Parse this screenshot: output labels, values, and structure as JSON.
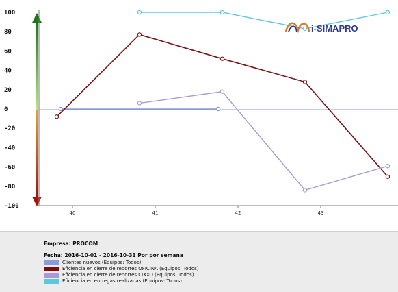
{
  "chart_data": {
    "type": "line",
    "ylim": [
      -100,
      100
    ],
    "yticks": [
      "100",
      "80",
      "60",
      "40",
      "20",
      "0",
      "-20",
      "-40",
      "-60",
      "-80",
      "-100"
    ],
    "categories": [
      "40",
      "41",
      "42",
      "43"
    ],
    "grid": false,
    "series": [
      {
        "name": "Clientes nuevos (Equipos: Todos)",
        "color": "#8a9bd8",
        "points": [
          [
            0,
            0
          ],
          [
            1.9,
            0
          ]
        ]
      },
      {
        "name": "Eficiencia en cierre de reportes OFICINA (Equipos: Todos)",
        "color": "#7a1414",
        "points": [
          [
            -0.05,
            -8
          ],
          [
            0.95,
            77
          ],
          [
            1.95,
            52
          ],
          [
            2.95,
            28
          ],
          [
            3.95,
            -70
          ]
        ]
      },
      {
        "name": "Eficiencia en cierre de reportes CIXXO (Equipos: Todos)",
        "color": "#a99ad6",
        "points": [
          [
            0.95,
            6
          ],
          [
            1.95,
            18
          ],
          [
            2.95,
            -84
          ],
          [
            3.95,
            -59
          ]
        ]
      },
      {
        "name": "Eficiencia en entregas realizadas (Equipos: Todos)",
        "color": "#5bc8db",
        "points": [
          [
            0.95,
            100
          ],
          [
            1.95,
            100
          ],
          [
            2.95,
            83
          ],
          [
            3.95,
            100
          ]
        ]
      }
    ]
  },
  "logo": {
    "text": "i-SIMAPRO"
  },
  "footer": {
    "company": "Empresa: PROCOM",
    "dot": ".",
    "daterange": "Fecha: 2016-10-01 - 2016-10-31 Por por semana"
  }
}
